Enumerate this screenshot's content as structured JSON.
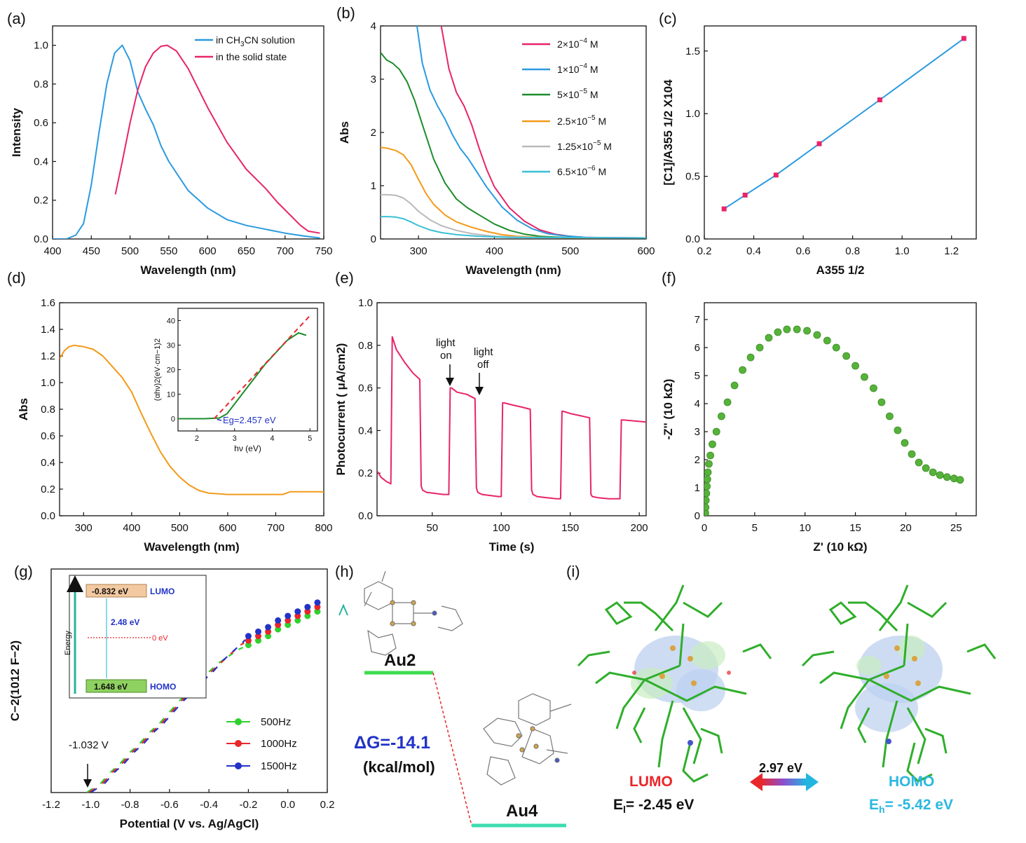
{
  "colors": {
    "pink": "#e8246a",
    "blue": "#2a9ae0",
    "green": "#1c8c2a",
    "orange": "#f39a1a",
    "grey": "#b9b9b9",
    "cyan": "#39c0d6",
    "ballgreen": "#56b33a",
    "red": "#e8272b",
    "navy": "#2233c8"
  },
  "panel_labels": [
    "(a)",
    "(b)",
    "(c)",
    "(d)",
    "(e)",
    "(f)",
    "(g)",
    "(h)",
    "(i)"
  ],
  "chart_data": [
    {
      "id": "a",
      "type": "line",
      "title": "",
      "xlabel": "Wavelength (nm)",
      "ylabel": "Intensity",
      "xlim": [
        400,
        750
      ],
      "ylim": [
        0,
        1.1
      ],
      "xticks": [
        "400",
        "450",
        "500",
        "550",
        "600",
        "650",
        "700",
        "750"
      ],
      "yticks": [
        "0.0",
        "0.2",
        "0.4",
        "0.6",
        "0.8",
        "1.0"
      ],
      "legend": [
        "in CH3CN solution",
        "in the solid state"
      ],
      "legend_position": "top-right",
      "series": [
        {
          "name": "in CH3CN solution",
          "color": "#2a9ae0",
          "x": [
            400,
            418,
            430,
            440,
            450,
            460,
            470,
            480,
            490,
            500,
            510,
            520,
            530,
            540,
            550,
            575,
            600,
            625,
            650,
            675,
            700,
            725,
            745
          ],
          "y": [
            0,
            0,
            0.02,
            0.08,
            0.28,
            0.55,
            0.8,
            0.96,
            1.0,
            0.92,
            0.76,
            0.67,
            0.59,
            0.48,
            0.4,
            0.25,
            0.16,
            0.1,
            0.07,
            0.05,
            0.03,
            0.015,
            0.005
          ]
        },
        {
          "name": "in the solid state",
          "color": "#e8246a",
          "x": [
            481,
            490,
            500,
            510,
            520,
            530,
            540,
            548,
            560,
            575,
            600,
            625,
            650,
            675,
            690,
            700,
            720,
            730,
            745
          ],
          "y": [
            0.23,
            0.4,
            0.6,
            0.77,
            0.89,
            0.96,
            0.995,
            1.0,
            0.97,
            0.88,
            0.68,
            0.5,
            0.36,
            0.26,
            0.19,
            0.15,
            0.07,
            0.04,
            0.03
          ]
        }
      ]
    },
    {
      "id": "b",
      "type": "line",
      "xlabel": "Wavelength (nm)",
      "ylabel": "Abs",
      "xlim": [
        250,
        600
      ],
      "ylim": [
        0,
        4
      ],
      "xticks": [
        "300",
        "400",
        "500",
        "600"
      ],
      "yticks": [
        "0",
        "1",
        "2",
        "3",
        "4"
      ],
      "legend": [
        "2×10−4 M",
        "1×10−4 M",
        "5×10−5 M",
        "2.5×10−5 M",
        "1.25×10−5 M",
        "6.5×10−6 M"
      ],
      "legend_position": "top-right",
      "series": [
        {
          "name": "2×10−4 M",
          "color": "#e8246a",
          "x": [
            330,
            340,
            350,
            360,
            370,
            380,
            390,
            400,
            420,
            440,
            460,
            480,
            500,
            520,
            550,
            600
          ],
          "y": [
            4.0,
            3.2,
            2.75,
            2.5,
            2.15,
            1.7,
            1.3,
            0.98,
            0.58,
            0.33,
            0.17,
            0.09,
            0.05,
            0.03,
            0.025,
            0.02
          ]
        },
        {
          "name": "1×10−4 M",
          "color": "#2a9ae0",
          "x": [
            298,
            305,
            315,
            325,
            335,
            345,
            355,
            365,
            375,
            390,
            410,
            430,
            450,
            470,
            490,
            520,
            560,
            600
          ],
          "y": [
            4.0,
            3.3,
            2.8,
            2.5,
            2.25,
            1.95,
            1.7,
            1.52,
            1.3,
            0.97,
            0.6,
            0.35,
            0.19,
            0.1,
            0.06,
            0.03,
            0.02,
            0.02
          ]
        },
        {
          "name": "5×10−5 M",
          "color": "#1c8c2a",
          "x": [
            250,
            258,
            266,
            275,
            285,
            295,
            305,
            320,
            335,
            350,
            365,
            380,
            400,
            420,
            440,
            460,
            490,
            530,
            600
          ],
          "y": [
            3.5,
            3.36,
            3.3,
            3.18,
            2.95,
            2.6,
            2.15,
            1.5,
            1.05,
            0.75,
            0.58,
            0.45,
            0.28,
            0.16,
            0.09,
            0.05,
            0.03,
            0.02,
            0.02
          ]
        },
        {
          "name": "2.5×10−5 M",
          "color": "#f39a1a",
          "x": [
            250,
            260,
            270,
            280,
            290,
            300,
            310,
            320,
            335,
            350,
            370,
            390,
            410,
            430,
            460,
            500,
            600
          ],
          "y": [
            1.72,
            1.7,
            1.66,
            1.58,
            1.4,
            1.12,
            0.85,
            0.65,
            0.45,
            0.32,
            0.22,
            0.14,
            0.08,
            0.05,
            0.03,
            0.02,
            0.02
          ]
        },
        {
          "name": "1.25×10−5 M",
          "color": "#b9b9b9",
          "x": [
            250,
            260,
            270,
            280,
            290,
            300,
            315,
            330,
            350,
            370,
            400,
            450,
            600
          ],
          "y": [
            0.83,
            0.83,
            0.82,
            0.77,
            0.66,
            0.52,
            0.36,
            0.25,
            0.16,
            0.1,
            0.05,
            0.03,
            0.02
          ]
        },
        {
          "name": "6.5×10−6 M",
          "color": "#39c0d6",
          "x": [
            250,
            260,
            270,
            280,
            290,
            300,
            315,
            330,
            350,
            380,
            420,
            600
          ],
          "y": [
            0.42,
            0.42,
            0.41,
            0.38,
            0.32,
            0.25,
            0.17,
            0.12,
            0.08,
            0.05,
            0.03,
            0.02
          ]
        }
      ]
    },
    {
      "id": "c",
      "type": "line",
      "xlabel": "A355 1/2",
      "ylabel": "[C1]/A355 1/2 X104",
      "xlim": [
        0.2,
        1.3
      ],
      "ylim": [
        0,
        1.7
      ],
      "xticks": [
        "0.2",
        "0.4",
        "0.6",
        "0.8",
        "1.0",
        "1.2"
      ],
      "yticks": [
        "0.0",
        "0.5",
        "1.0",
        "1.5"
      ],
      "series": [
        {
          "name": "fit",
          "color": "#2a9ae0",
          "marker_color": "#e8246a",
          "x": [
            0.28,
            0.365,
            0.49,
            0.665,
            0.91,
            1.25
          ],
          "y": [
            0.24,
            0.35,
            0.51,
            0.76,
            1.11,
            1.6
          ]
        }
      ]
    },
    {
      "id": "d",
      "type": "line",
      "xlabel": "Wavelength (nm)",
      "ylabel": "Abs",
      "xlim": [
        250,
        800
      ],
      "ylim": [
        0,
        1.6
      ],
      "xticks": [
        "300",
        "400",
        "500",
        "600",
        "700",
        "800"
      ],
      "yticks": [
        "0.0",
        "0.2",
        "0.4",
        "0.6",
        "0.8",
        "1.0",
        "1.2",
        "1.4",
        "1.6"
      ],
      "series": [
        {
          "name": "absorption",
          "color": "#f39a1a",
          "x": [
            250,
            260,
            270,
            280,
            300,
            320,
            340,
            360,
            380,
            400,
            420,
            440,
            460,
            480,
            500,
            520,
            540,
            560,
            580,
            600,
            650,
            700,
            715,
            730,
            760,
            800
          ],
          "y": [
            1.18,
            1.24,
            1.27,
            1.28,
            1.27,
            1.25,
            1.2,
            1.12,
            1.04,
            0.93,
            0.77,
            0.62,
            0.48,
            0.37,
            0.29,
            0.23,
            0.19,
            0.17,
            0.165,
            0.16,
            0.16,
            0.16,
            0.16,
            0.18,
            0.18,
            0.18
          ]
        }
      ],
      "inset": {
        "xlabel": "hν (eV)",
        "ylabel": "(αhν)2(eV·cm−1)2",
        "xlim": [
          1.5,
          5.2
        ],
        "ylim": [
          -5,
          45
        ],
        "xticks": [
          "2",
          "3",
          "4",
          "5"
        ],
        "yticks": [
          "0",
          "10",
          "20",
          "30",
          "40"
        ],
        "annotation": "Eg=2.457 eV",
        "series": [
          {
            "name": "data",
            "color": "#1c8c2a",
            "x": [
              1.5,
              2.2,
              2.6,
              2.8,
              3.0,
              3.2,
              3.5,
              3.8,
              4.1,
              4.4,
              4.7,
              4.9
            ],
            "y": [
              0,
              0,
              0.3,
              2,
              6,
              10,
              16,
              22,
              27,
              32,
              35,
              34
            ]
          },
          {
            "name": "fit",
            "color": "#e8272b",
            "x": [
              2.457,
              5.0
            ],
            "y": [
              0,
              42
            ]
          }
        ]
      }
    },
    {
      "id": "e",
      "type": "line",
      "xlabel": "Time (s)",
      "ylabel": "Photocurrent ( μA/cm2)",
      "xlim": [
        10,
        205
      ],
      "ylim": [
        0,
        1.0
      ],
      "xticks": [
        "50",
        "100",
        "150",
        "200"
      ],
      "yticks": [
        "0.0",
        "0.2",
        "0.4",
        "0.6",
        "0.8",
        "1.0"
      ],
      "annotations": [
        "light on",
        "light off"
      ],
      "series": [
        {
          "name": "photocurrent",
          "color": "#e8246a",
          "x": [
            10,
            13,
            17,
            20,
            21,
            24,
            30,
            36,
            41,
            42,
            43,
            46,
            52,
            58,
            62,
            63,
            64,
            68,
            75,
            81,
            82,
            83,
            86,
            92,
            98,
            100,
            101,
            102,
            108,
            115,
            121,
            122,
            123,
            126,
            133,
            140,
            143,
            144,
            145,
            150,
            157,
            164,
            165,
            166,
            170,
            178,
            186,
            187,
            188,
            205
          ],
          "y": [
            0.21,
            0.18,
            0.16,
            0.15,
            0.84,
            0.78,
            0.72,
            0.67,
            0.64,
            0.14,
            0.12,
            0.11,
            0.105,
            0.1,
            0.1,
            0.6,
            0.6,
            0.58,
            0.57,
            0.55,
            0.13,
            0.11,
            0.1,
            0.095,
            0.09,
            0.09,
            0.53,
            0.53,
            0.52,
            0.51,
            0.5,
            0.12,
            0.1,
            0.09,
            0.085,
            0.08,
            0.08,
            0.49,
            0.49,
            0.48,
            0.47,
            0.46,
            0.1,
            0.09,
            0.085,
            0.08,
            0.08,
            0.45,
            0.45,
            0.44
          ]
        }
      ]
    },
    {
      "id": "f",
      "type": "scatter",
      "xlabel": "Z' (10 kΩ)",
      "ylabel": "-Z'' (10 kΩ)",
      "xlim": [
        0,
        27
      ],
      "ylim": [
        0,
        7.6
      ],
      "xticks": [
        "0",
        "5",
        "10",
        "15",
        "20",
        "25"
      ],
      "yticks": [
        "0",
        "1",
        "2",
        "3",
        "4",
        "5",
        "6",
        "7"
      ],
      "series": [
        {
          "name": "impedance",
          "color": "#56b33a",
          "x": [
            0.1,
            0.12,
            0.15,
            0.2,
            0.25,
            0.3,
            0.35,
            0.45,
            0.6,
            0.8,
            1.2,
            1.7,
            2.3,
            3.0,
            3.8,
            4.6,
            5.5,
            6.4,
            7.3,
            8.2,
            9.2,
            10.2,
            11.2,
            12.2,
            13.1,
            14.1,
            15.0,
            15.9,
            16.8,
            17.6,
            18.4,
            19.2,
            19.9,
            20.6,
            21.3,
            22.0,
            22.7,
            23.4,
            24.1,
            24.8,
            25.4
          ],
          "y": [
            0.1,
            0.3,
            0.55,
            0.8,
            1.05,
            1.3,
            1.55,
            1.85,
            2.15,
            2.55,
            3.0,
            3.55,
            4.05,
            4.65,
            5.2,
            5.65,
            6.0,
            6.35,
            6.55,
            6.65,
            6.65,
            6.6,
            6.45,
            6.25,
            6.0,
            5.7,
            5.35,
            4.95,
            4.55,
            4.05,
            3.55,
            3.05,
            2.6,
            2.2,
            1.9,
            1.7,
            1.55,
            1.45,
            1.38,
            1.33,
            1.28
          ]
        }
      ]
    },
    {
      "id": "g",
      "type": "scatter",
      "xlabel": "Potential (V vs. Ag/AgCl)",
      "ylabel": "C−2(1012 F−2)",
      "xlim": [
        -1.2,
        0.2
      ],
      "ylim": [
        0,
        1
      ],
      "xticks": [
        "-1.2",
        "-1.0",
        "-0.8",
        "-0.6",
        "-0.4",
        "-0.2",
        "0.0",
        "0.2"
      ],
      "annotation": "-1.032 V",
      "legend": [
        "500Hz",
        "1000Hz",
        "1500Hz"
      ],
      "legend_position": "bottom-right",
      "inset": {
        "lumo_label": "-0.832 eV",
        "lumo": "LUMO",
        "gap_label": "2.48 eV",
        "zero_label": "0 eV",
        "homo_label": "1.648 eV",
        "homo": "HOMO",
        "axis_label": "Energy"
      },
      "series": [
        {
          "name": "500Hz",
          "color": "#2fd12f",
          "x": [
            -1.02,
            -0.95,
            -0.9,
            -0.85,
            -0.8,
            -0.75,
            -0.7,
            -0.65,
            -0.6,
            -0.55,
            -0.5,
            -0.45,
            -0.4,
            -0.35,
            -0.3,
            -0.25,
            -0.2,
            -0.15,
            -0.1,
            -0.05,
            0.0,
            0.05,
            0.1,
            0.15
          ],
          "y": [
            0.0,
            0.04,
            0.09,
            0.13,
            0.18,
            0.22,
            0.27,
            0.31,
            0.36,
            0.41,
            0.45,
            0.5,
            0.54,
            0.58,
            0.61,
            0.64,
            0.66,
            0.68,
            0.7,
            0.73,
            0.75,
            0.77,
            0.79,
            0.81
          ]
        },
        {
          "name": "1000Hz",
          "color": "#e8272b",
          "x": [
            -1.01,
            -0.94,
            -0.89,
            -0.84,
            -0.79,
            -0.74,
            -0.69,
            -0.64,
            -0.59,
            -0.54,
            -0.49,
            -0.44,
            -0.39,
            -0.34,
            -0.29,
            -0.24,
            -0.2,
            -0.15,
            -0.1,
            -0.05,
            0.0,
            0.05,
            0.1,
            0.15
          ],
          "y": [
            0.0,
            0.04,
            0.09,
            0.13,
            0.18,
            0.22,
            0.27,
            0.31,
            0.36,
            0.41,
            0.45,
            0.5,
            0.54,
            0.58,
            0.62,
            0.66,
            0.68,
            0.7,
            0.72,
            0.75,
            0.77,
            0.79,
            0.81,
            0.83
          ]
        },
        {
          "name": "1500Hz",
          "color": "#2233c8",
          "x": [
            -1.0,
            -0.93,
            -0.88,
            -0.83,
            -0.78,
            -0.73,
            -0.68,
            -0.63,
            -0.58,
            -0.53,
            -0.48,
            -0.43,
            -0.38,
            -0.33,
            -0.28,
            -0.23,
            -0.2,
            -0.15,
            -0.1,
            -0.05,
            0.0,
            0.05,
            0.1,
            0.15
          ],
          "y": [
            0.0,
            0.04,
            0.09,
            0.13,
            0.18,
            0.22,
            0.27,
            0.31,
            0.36,
            0.41,
            0.45,
            0.5,
            0.54,
            0.59,
            0.63,
            0.67,
            0.7,
            0.72,
            0.74,
            0.77,
            0.79,
            0.81,
            0.83,
            0.85
          ]
        }
      ]
    }
  ],
  "panel_h": {
    "au2": "Au2",
    "au4": "Au4",
    "dg": "ΔG=-14.1",
    "unit": "(kcal/mol)"
  },
  "panel_i": {
    "lumo": "LUMO",
    "el": "El= -2.45 eV",
    "gap": "2.97 eV",
    "homo": "HOMO",
    "eh": "Eh= -5.42 eV"
  }
}
